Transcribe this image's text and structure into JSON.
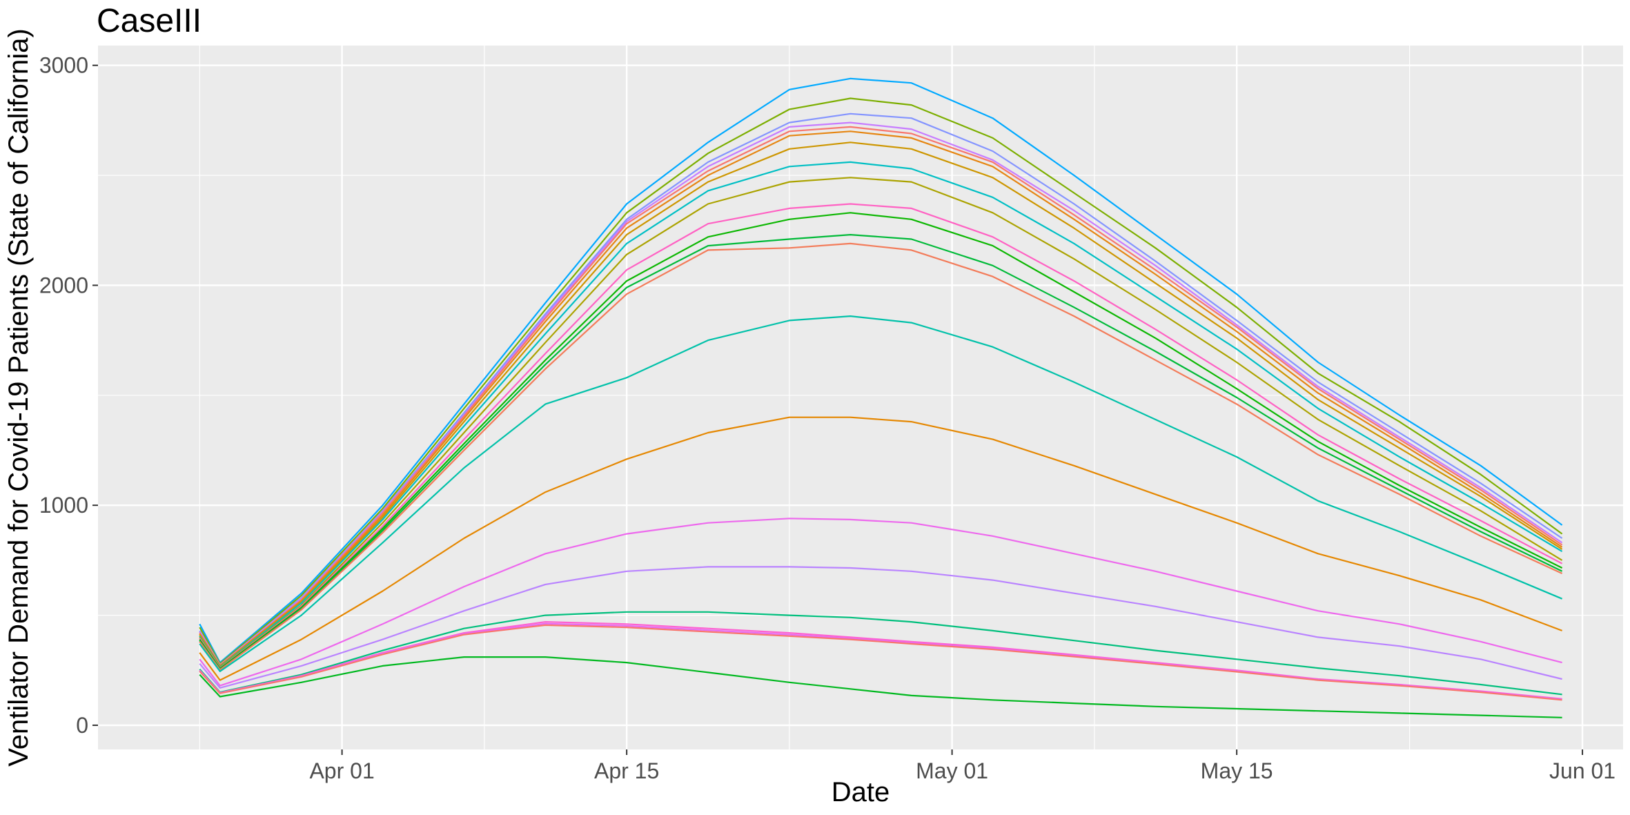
{
  "chart_data": {
    "type": "line",
    "title": "CaseIII",
    "xlabel": "Date",
    "ylabel": "Ventilator Demand for Covid-19 Patients (State of California)",
    "x_tick_labels": [
      "Apr 01",
      "Apr 15",
      "May 01",
      "May 15",
      "Jun 01"
    ],
    "x_tick_dates": [
      "2020-04-01",
      "2020-04-15",
      "2020-05-01",
      "2020-05-15",
      "2020-06-01"
    ],
    "y_tick_labels": [
      "0",
      "1000",
      "2000",
      "3000"
    ],
    "y_tick_values": [
      0,
      1000,
      2000,
      3000
    ],
    "xlim": [
      "2020-03-20",
      "2020-06-03"
    ],
    "ylim": [
      -110,
      3090
    ],
    "grid": true,
    "legend": "none",
    "x": [
      "2020-03-25",
      "2020-03-26",
      "2020-03-30",
      "2020-04-03",
      "2020-04-07",
      "2020-04-11",
      "2020-04-15",
      "2020-04-19",
      "2020-04-23",
      "2020-04-26",
      "2020-04-29",
      "2020-05-03",
      "2020-05-07",
      "2020-05-11",
      "2020-05-15",
      "2020-05-19",
      "2020-05-23",
      "2020-05-27",
      "2020-05-31"
    ],
    "series": [
      {
        "color": "#00A9FF",
        "values": [
          460,
          285,
          600,
          1000,
          1460,
          1920,
          2370,
          2650,
          2890,
          2940,
          2920,
          2760,
          2500,
          2230,
          1960,
          1650,
          1410,
          1180,
          910
        ]
      },
      {
        "color": "#7CAE00",
        "values": [
          445,
          280,
          590,
          985,
          1440,
          1890,
          2330,
          2600,
          2800,
          2850,
          2820,
          2670,
          2420,
          2170,
          1900,
          1600,
          1380,
          1140,
          870
        ]
      },
      {
        "color": "#8494FF",
        "values": [
          430,
          275,
          580,
          975,
          1420,
          1870,
          2300,
          2560,
          2740,
          2780,
          2760,
          2610,
          2370,
          2110,
          1840,
          1560,
          1330,
          1100,
          850
        ]
      },
      {
        "color": "#C77CFF",
        "values": [
          425,
          275,
          575,
          970,
          1410,
          1860,
          2290,
          2540,
          2720,
          2740,
          2710,
          2570,
          2340,
          2090,
          1820,
          1540,
          1310,
          1080,
          830
        ]
      },
      {
        "color": "#F8766D",
        "values": [
          420,
          272,
          570,
          965,
          1405,
          1850,
          2280,
          2520,
          2700,
          2720,
          2690,
          2560,
          2320,
          2070,
          1810,
          1530,
          1300,
          1070,
          820
        ]
      },
      {
        "color": "#E68613",
        "values": [
          415,
          270,
          565,
          955,
          1395,
          1835,
          2260,
          2500,
          2680,
          2700,
          2670,
          2540,
          2300,
          2050,
          1790,
          1510,
          1285,
          1055,
          810
        ]
      },
      {
        "color": "#CD9600",
        "values": [
          410,
          268,
          560,
          945,
          1380,
          1810,
          2230,
          2470,
          2620,
          2650,
          2620,
          2490,
          2260,
          2010,
          1760,
          1480,
          1260,
          1040,
          800
        ]
      },
      {
        "color": "#00BFC4",
        "values": [
          405,
          265,
          555,
          935,
          1360,
          1780,
          2190,
          2430,
          2540,
          2560,
          2530,
          2400,
          2190,
          1950,
          1710,
          1440,
          1220,
          1010,
          790
        ]
      },
      {
        "color": "#ABA300",
        "values": [
          400,
          262,
          545,
          920,
          1330,
          1740,
          2140,
          2370,
          2470,
          2490,
          2470,
          2330,
          2120,
          1890,
          1650,
          1390,
          1180,
          975,
          750
        ]
      },
      {
        "color": "#FF61C3",
        "values": [
          395,
          260,
          540,
          905,
          1300,
          1690,
          2070,
          2280,
          2350,
          2370,
          2350,
          2220,
          2020,
          1800,
          1570,
          1320,
          1120,
          930,
          735
        ]
      },
      {
        "color": "#0CB702",
        "values": [
          390,
          258,
          535,
          895,
          1280,
          1660,
          2020,
          2220,
          2300,
          2330,
          2300,
          2180,
          1970,
          1760,
          1530,
          1290,
          1090,
          900,
          715
        ]
      },
      {
        "color": "#00BA38",
        "values": [
          385,
          255,
          530,
          885,
          1265,
          1640,
          1990,
          2180,
          2210,
          2230,
          2210,
          2090,
          1900,
          1700,
          1490,
          1260,
          1070,
          880,
          700
        ]
      },
      {
        "color": "#F37B59",
        "values": [
          380,
          252,
          525,
          875,
          1250,
          1620,
          1960,
          2160,
          2170,
          2190,
          2160,
          2040,
          1860,
          1660,
          1460,
          1230,
          1050,
          860,
          690
        ]
      },
      {
        "color": "#00C1A9",
        "values": [
          370,
          245,
          500,
          830,
          1170,
          1460,
          1580,
          1750,
          1840,
          1860,
          1830,
          1720,
          1560,
          1390,
          1220,
          1020,
          880,
          730,
          575
        ]
      },
      {
        "color": "#E58700",
        "values": [
          330,
          205,
          390,
          610,
          850,
          1060,
          1210,
          1330,
          1400,
          1400,
          1380,
          1300,
          1180,
          1050,
          920,
          780,
          680,
          570,
          430
        ]
      },
      {
        "color": "#ED68ED",
        "values": [
          300,
          180,
          300,
          460,
          630,
          780,
          870,
          920,
          940,
          935,
          920,
          860,
          780,
          700,
          610,
          520,
          460,
          380,
          285
        ]
      },
      {
        "color": "#B983FF",
        "values": [
          280,
          170,
          270,
          390,
          520,
          640,
          700,
          720,
          720,
          715,
          700,
          660,
          600,
          540,
          470,
          400,
          360,
          300,
          210
        ]
      },
      {
        "color": "#00BF7D",
        "values": [
          255,
          150,
          230,
          340,
          440,
          500,
          515,
          515,
          500,
          490,
          470,
          430,
          385,
          340,
          300,
          260,
          225,
          185,
          140
        ]
      },
      {
        "color": "#FD61D1",
        "values": [
          250,
          148,
          225,
          330,
          420,
          470,
          460,
          440,
          420,
          400,
          380,
          355,
          320,
          285,
          250,
          210,
          185,
          155,
          120
        ]
      },
      {
        "color": "#E76BF3",
        "values": [
          248,
          146,
          222,
          326,
          416,
          462,
          452,
          432,
          412,
          394,
          374,
          350,
          316,
          281,
          246,
          207,
          182,
          152,
          118
        ]
      },
      {
        "color": "#F8766D",
        "values": [
          245,
          145,
          220,
          322,
          412,
          455,
          445,
          425,
          405,
          390,
          370,
          345,
          312,
          278,
          243,
          205,
          180,
          150,
          115
        ]
      },
      {
        "color": "#00B81F",
        "values": [
          230,
          130,
          195,
          270,
          310,
          310,
          285,
          240,
          195,
          165,
          135,
          115,
          100,
          85,
          75,
          65,
          55,
          45,
          35
        ]
      }
    ]
  }
}
